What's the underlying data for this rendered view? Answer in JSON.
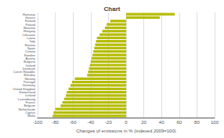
{
  "chart_data": {
    "type": "bar",
    "orientation": "horizontal",
    "title": "Chart",
    "xlabel": "Changes of emissions in % (indexed 2009=100)",
    "categories": [
      "Romania",
      "Greece",
      "Finland",
      "Poland",
      "Slovenia",
      "Hungary",
      "Lithuania",
      "Latvia",
      "Italy",
      "Estonia",
      "Spain",
      "Croatia",
      "Sweden",
      "Austria",
      "Bulgaria",
      "Ireland",
      "Denmark",
      "Czech Republic",
      "Slovakia",
      "Norway",
      "Portugal",
      "Germany",
      "United Kingdom",
      "Switzerland",
      "Iceland",
      "Luxembourg",
      "France",
      "Belgium",
      "Netherlands",
      "Cyprus",
      "Malta"
    ],
    "values": [
      55,
      38,
      -18,
      -22,
      -24,
      -27,
      -30,
      -33,
      -34,
      -35,
      -36,
      -37,
      -38,
      -39,
      -40,
      -41,
      -42,
      -43,
      -44,
      -58,
      -61,
      -63,
      -65,
      -67,
      -68,
      -70,
      -72,
      -74,
      -80,
      -82,
      -83
    ],
    "color": "#b5bc00",
    "xlim": [
      -100,
      100
    ],
    "xticks": [
      -100,
      -80,
      -60,
      -40,
      -20,
      0,
      20,
      40,
      60,
      80,
      100
    ],
    "grid": true
  }
}
